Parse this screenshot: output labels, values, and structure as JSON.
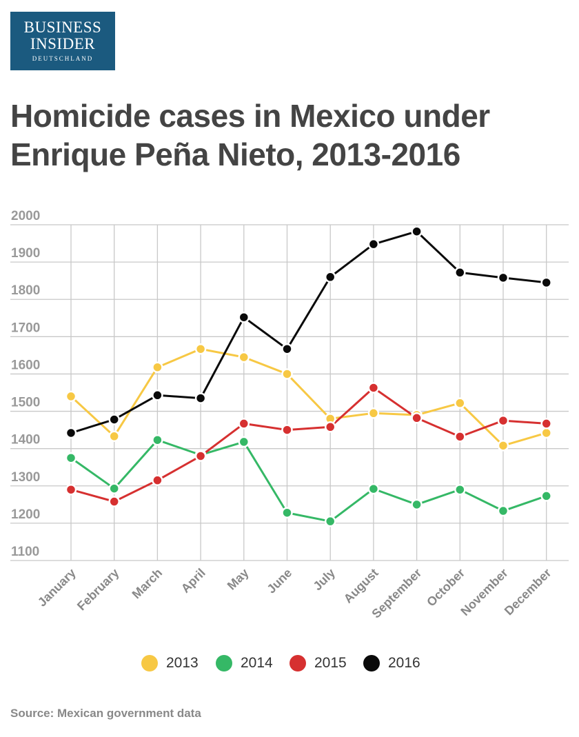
{
  "brand": {
    "line1": "BUSINESS",
    "line2": "INSIDER",
    "line3": "DEUTSCHLAND",
    "color": "#1b5a7f"
  },
  "title": "Homicide cases in Mexico under Enrique Peña Nieto, 2013-2016",
  "source": "Source: Mexican government data",
  "chart_data": {
    "type": "line",
    "title": "Homicide cases in Mexico under Enrique Peña Nieto, 2013-2016",
    "xlabel": "",
    "ylabel": "",
    "ylim": [
      1100,
      2000
    ],
    "yticks": [
      2000,
      1900,
      1800,
      1700,
      1600,
      1500,
      1400,
      1300,
      1200,
      1100
    ],
    "grid": true,
    "legend_position": "bottom",
    "categories": [
      "January",
      "February",
      "March",
      "April",
      "May",
      "June",
      "July",
      "August",
      "September",
      "October",
      "November",
      "December"
    ],
    "series": [
      {
        "name": "2013",
        "color": "#f7c844",
        "values": [
          1540,
          1433,
          1618,
          1667,
          1645,
          1600,
          1480,
          1495,
          1490,
          1522,
          1408,
          1442
        ]
      },
      {
        "name": "2014",
        "color": "#35b866",
        "values": [
          1375,
          1293,
          1423,
          1383,
          1418,
          1228,
          1205,
          1292,
          1250,
          1290,
          1233,
          1273
        ]
      },
      {
        "name": "2015",
        "color": "#d63030",
        "values": [
          1290,
          1258,
          1315,
          1380,
          1467,
          1450,
          1458,
          1563,
          1482,
          1432,
          1475,
          1467
        ]
      },
      {
        "name": "2016",
        "color": "#0a0a0a",
        "values": [
          1442,
          1478,
          1543,
          1535,
          1752,
          1667,
          1860,
          1948,
          1982,
          1872,
          1858,
          1845
        ]
      }
    ]
  }
}
